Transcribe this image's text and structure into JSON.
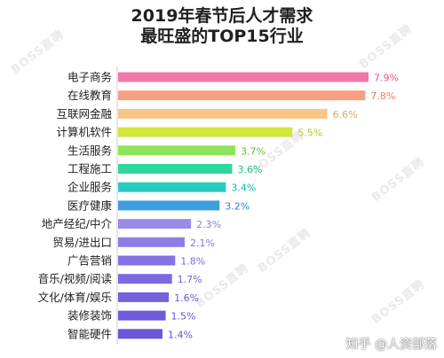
{
  "page": {
    "title_line1": "2019年春节后人才需求",
    "title_line2": "最旺盛的TOP15行业",
    "watermark": "BOSS直聘",
    "footer": "知乎 @人资部落"
  },
  "chart_data": {
    "type": "bar",
    "orientation": "horizontal",
    "title": "2019年春节后人才需求最旺盛的TOP15行业",
    "xlabel": "",
    "ylabel": "",
    "xlim": [
      0,
      7.9
    ],
    "grid": false,
    "legend": "none",
    "unit": "%",
    "categories": [
      "电子商务",
      "在线教育",
      "互联网金融",
      "计算机软件",
      "生活服务",
      "工程施工",
      "企业服务",
      "医疗健康",
      "地产经纪/中介",
      "贸易/进出口",
      "广告营销",
      "音乐/视频/阅读",
      "文化/体育/娱乐",
      "装修装饰",
      "智能硬件"
    ],
    "values": [
      7.9,
      7.8,
      6.6,
      5.5,
      3.7,
      3.6,
      3.4,
      3.2,
      2.3,
      2.1,
      1.8,
      1.7,
      1.6,
      1.5,
      1.4
    ],
    "value_labels": [
      "7.9%",
      "7.8%",
      "6.6%",
      "5.5%",
      "3.7%",
      "3.6%",
      "3.4%",
      "3.2%",
      "2.3%",
      "2.1%",
      "1.8%",
      "1.7%",
      "1.6%",
      "1.5%",
      "1.4%"
    ],
    "bar_colors": [
      "#f277a9",
      "#f59f83",
      "#f7c786",
      "#d2e63b",
      "#8fe35a",
      "#2fd7a0",
      "#29cbc1",
      "#3f9ee0",
      "#9a8be8",
      "#8d7de6",
      "#8373e4",
      "#7b69e1",
      "#7462de",
      "#6e5cdb",
      "#6a58d8"
    ],
    "label_colors": [
      "#e8508d",
      "#ec8060",
      "#e9a54d",
      "#b5c81d",
      "#5fc42b",
      "#1fbf87",
      "#17b3a9",
      "#2f86cc",
      "#8f81e0",
      "#8374dd",
      "#7a6bda",
      "#7262d7",
      "#6c5bd4",
      "#6755d1",
      "#6352ce"
    ]
  }
}
